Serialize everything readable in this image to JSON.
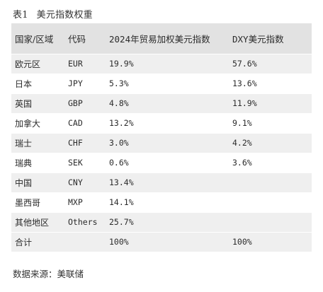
{
  "caption": {
    "number": "表1",
    "title": "美元指数权重"
  },
  "table": {
    "headers": [
      "国家/区域",
      "代码",
      "2024年贸易加权美元指数",
      "DXY美元指数"
    ],
    "rows": [
      [
        "欧元区",
        "EUR",
        "19.9%",
        "57.6%"
      ],
      [
        "日本",
        "JPY",
        "5.3%",
        "13.6%"
      ],
      [
        "英国",
        "GBP",
        "4.8%",
        "11.9%"
      ],
      [
        "加拿大",
        "CAD",
        "13.2%",
        "9.1%"
      ],
      [
        "瑞士",
        "CHF",
        "3.0%",
        "4.2%"
      ],
      [
        "瑞典",
        "SEK",
        "0.6%",
        "3.6%"
      ],
      [
        "中国",
        "CNY",
        "13.4%",
        ""
      ],
      [
        "墨西哥",
        "MXP",
        "14.1%",
        ""
      ],
      [
        "其他地区",
        "Others",
        "25.7%",
        ""
      ],
      [
        "合计",
        "",
        "100%",
        "100%"
      ]
    ]
  },
  "source": "数据来源：美联储"
}
